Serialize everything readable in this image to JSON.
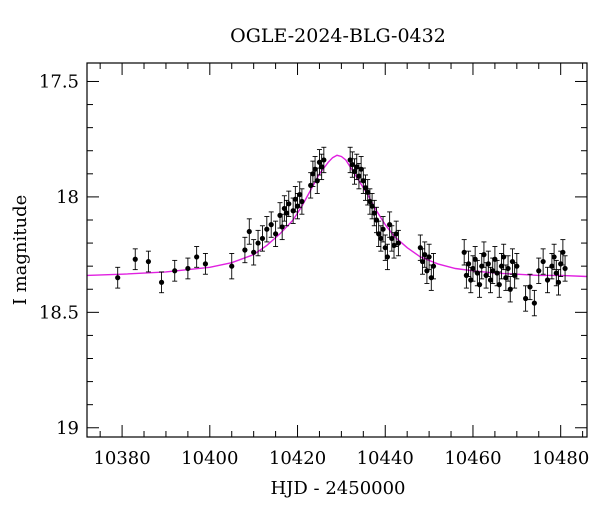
{
  "chart_data": {
    "type": "scatter",
    "title": "OGLE-2024-BLG-0432",
    "xlabel": "HJD - 2450000",
    "ylabel": "I magnitude",
    "xlim": [
      10372,
      10486
    ],
    "ylim": [
      19.04,
      17.42
    ],
    "y_inverted": true,
    "x_ticks": [
      10380,
      10400,
      10420,
      10440,
      10460,
      10480
    ],
    "x_tick_labels": [
      "10380",
      "10400",
      "10420",
      "10440",
      "10460",
      "10480"
    ],
    "x_minor_step": 5,
    "y_ticks": [
      17.5,
      18,
      18.5,
      19
    ],
    "y_tick_labels": [
      "17.5",
      "18",
      "18.5",
      "19"
    ],
    "y_minor_step": 0.1,
    "grid": false,
    "series": [
      {
        "name": "photometry",
        "type": "scatter",
        "color": "#000000",
        "x": [
          10379,
          10383,
          10386,
          10389,
          10392,
          10395,
          10397,
          10399,
          10405,
          10408,
          10409,
          10410,
          10411,
          10412,
          10413,
          10414,
          10415,
          10416,
          10416.5,
          10417,
          10417.5,
          10418,
          10419,
          10419.5,
          10420,
          10420.5,
          10421,
          10423,
          10423.5,
          10424,
          10424.5,
          10425,
          10425.5,
          10426,
          10432,
          10432.5,
          10433,
          10433.5,
          10434,
          10434.5,
          10435,
          10435.5,
          10436,
          10436.5,
          10437,
          10437.5,
          10438,
          10438.5,
          10439,
          10439.5,
          10440,
          10440.5,
          10441,
          10441.5,
          10442,
          10442.5,
          10443,
          10448,
          10448.5,
          10449,
          10449.5,
          10450,
          10450.5,
          10451,
          10458,
          10458.5,
          10459,
          10459.5,
          10460,
          10460.5,
          10461,
          10461.5,
          10462,
          10462.5,
          10463,
          10463.5,
          10464,
          10464.5,
          10465,
          10465.5,
          10466,
          10466.5,
          10467,
          10467.5,
          10468,
          10468.5,
          10469,
          10469.5,
          10470,
          10472,
          10473,
          10474,
          10475,
          10476,
          10477,
          10478,
          10478.5,
          10479,
          10479.5,
          10480,
          10480.5,
          10481
        ],
        "y": [
          18.35,
          18.27,
          18.28,
          18.37,
          18.32,
          18.31,
          18.26,
          18.29,
          18.3,
          18.23,
          18.15,
          18.24,
          18.2,
          18.18,
          18.14,
          18.12,
          18.16,
          18.08,
          18.13,
          18.05,
          18.07,
          18.03,
          18.06,
          18.01,
          18.04,
          17.99,
          18.02,
          17.95,
          17.9,
          17.88,
          17.93,
          17.85,
          17.87,
          17.84,
          17.84,
          17.86,
          17.89,
          17.87,
          17.91,
          17.88,
          17.93,
          17.96,
          17.98,
          18.02,
          18.04,
          18.07,
          18.1,
          18.16,
          18.18,
          18.14,
          18.22,
          18.26,
          18.12,
          18.18,
          18.21,
          18.16,
          18.2,
          18.22,
          18.28,
          18.25,
          18.32,
          18.26,
          18.35,
          18.3,
          18.24,
          18.34,
          18.29,
          18.36,
          18.31,
          18.27,
          18.33,
          18.38,
          18.3,
          18.25,
          18.34,
          18.29,
          18.36,
          18.32,
          18.27,
          18.33,
          18.38,
          18.3,
          18.26,
          18.35,
          18.31,
          18.4,
          18.28,
          18.34,
          18.3,
          18.44,
          18.39,
          18.46,
          18.32,
          18.28,
          18.36,
          18.3,
          18.26,
          18.33,
          18.37,
          18.29,
          18.24,
          18.31
        ]
      },
      {
        "name": "model",
        "type": "line",
        "color": "#e020e0",
        "x": [
          10372,
          10380,
          10390,
          10400,
          10405,
          10410,
          10413,
          10416,
          10419,
          10421,
          10423,
          10425,
          10427,
          10428,
          10429,
          10430,
          10431,
          10432,
          10434,
          10436,
          10438,
          10440,
          10442,
          10445,
          10448,
          10452,
          10456,
          10460,
          10465,
          10470,
          10475,
          10480,
          10486
        ],
        "y": [
          18.34,
          18.335,
          18.325,
          18.305,
          18.285,
          18.25,
          18.21,
          18.16,
          18.1,
          18.04,
          17.97,
          17.9,
          17.85,
          17.83,
          17.82,
          17.825,
          17.84,
          17.87,
          17.93,
          17.99,
          18.06,
          18.12,
          18.17,
          18.22,
          18.26,
          18.29,
          18.31,
          18.32,
          18.33,
          18.335,
          18.34,
          18.34,
          18.345
        ]
      }
    ],
    "error_bar_mag": 0.055,
    "error_bar_mag_early": 0.045
  }
}
